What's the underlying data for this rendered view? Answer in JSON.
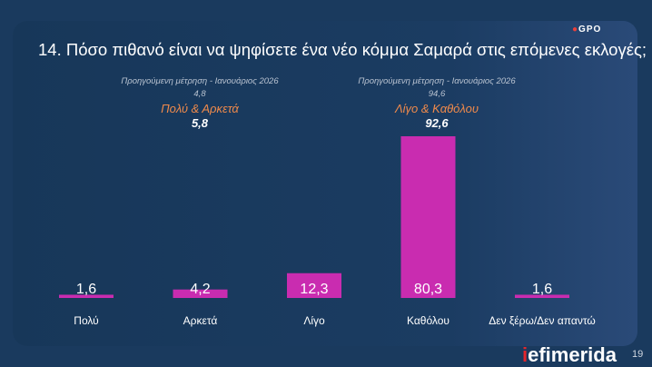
{
  "title": "14. Πόσο πιθανό είναι να ψηφίσετε ένα νέο κόμμα Σαμαρά στις επόμενες εκλογές;",
  "logo": "GPO",
  "notes": [
    {
      "prev_label": "Προηγούμενη μέτρηση - Ιανουάριος 2026",
      "prev_value": "4,8",
      "group": "Πολύ & Αρκετά",
      "current": "5,8"
    },
    {
      "prev_label": "Προηγούμενη μέτρηση - Ιανουάριος 2026",
      "prev_value": "94,6",
      "group": "Λίγο & Καθόλου",
      "current": "92,6"
    }
  ],
  "chart_data": {
    "type": "bar",
    "categories": [
      "Πολύ",
      "Αρκετά",
      "Λίγο",
      "Καθόλου",
      "Δεν ξέρω/Δεν απαντώ"
    ],
    "values": [
      1.6,
      4.2,
      12.3,
      80.3,
      1.6
    ],
    "labels": [
      "1,6",
      "4,2",
      "12,3",
      "80,3",
      "1,6"
    ],
    "color": "#c92cb0",
    "ylim": [
      0,
      100
    ]
  },
  "footer": {
    "brand_i": "i",
    "brand_rest": "efimerida",
    "page": "19"
  }
}
